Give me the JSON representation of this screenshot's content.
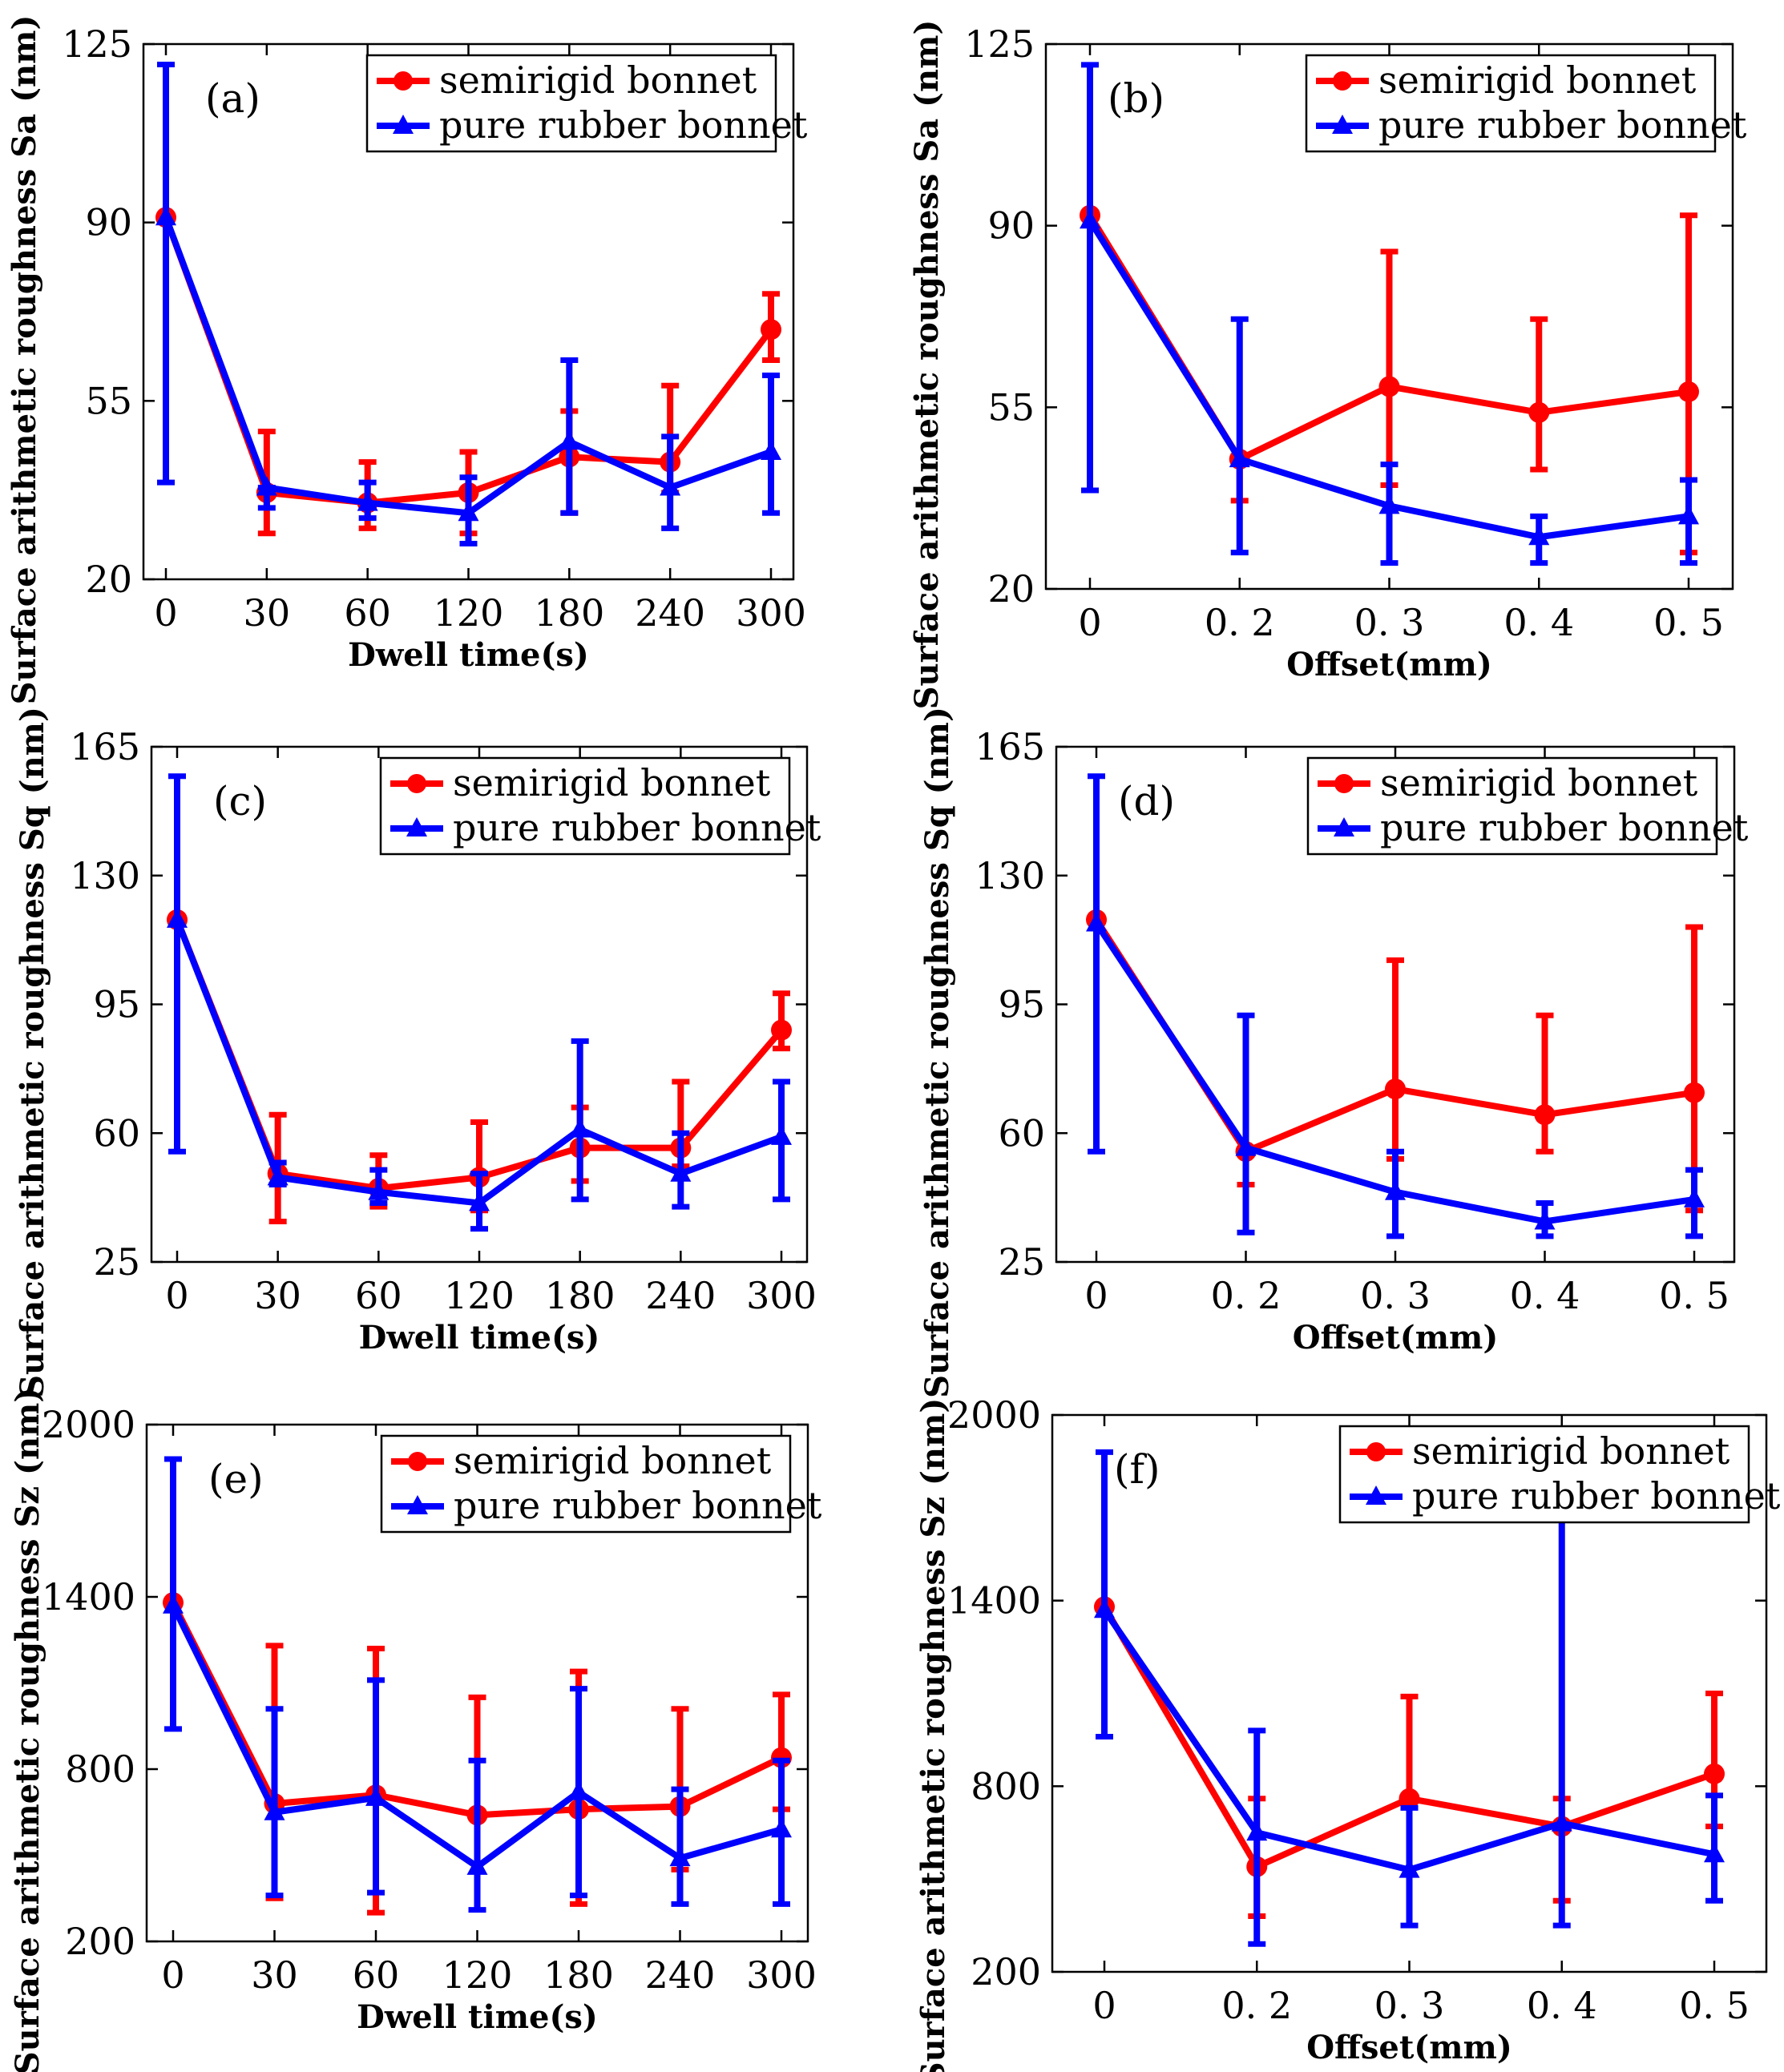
{
  "colors": {
    "semirigid": "#ff0000",
    "rubber": "#0000ff",
    "axis": "#000000"
  },
  "chart_data": [
    {
      "type": "line",
      "panel_label": "(a)",
      "xlabel": "Dwell time(s)",
      "ylabel": "Surface arithmetic roughness  Sa (nm)",
      "categories": [
        "0",
        "30",
        "60",
        "120",
        "180",
        "240",
        "300"
      ],
      "ylim": [
        20,
        125
      ],
      "yticks": [
        "20",
        "55",
        "90",
        "125"
      ],
      "legend": [
        "semirigid  bonnet",
        "pure rubber bonnet"
      ],
      "series": [
        {
          "name": "semirigid  bonnet",
          "values": [
            91,
            37,
            35,
            37,
            44,
            43,
            69
          ],
          "err_low": [
            91,
            29,
            30,
            29,
            33,
            37,
            63
          ],
          "err_high": [
            91,
            49,
            43,
            45,
            53,
            58,
            76
          ]
        },
        {
          "name": "pure rubber bonnet",
          "values": [
            91,
            38,
            35,
            33,
            47,
            38,
            45
          ],
          "err_low": [
            39,
            34,
            32,
            27,
            33,
            30,
            33
          ],
          "err_high": [
            121,
            38,
            39,
            40,
            63,
            48,
            60
          ]
        }
      ]
    },
    {
      "type": "line",
      "panel_label": "(b)",
      "xlabel": "Offset(mm)",
      "ylabel": "Surface arithmetic roughness  Sa (nm)",
      "categories": [
        "0",
        "0. 2",
        "0. 3",
        "0. 4",
        "0. 5"
      ],
      "ylim": [
        20,
        125
      ],
      "yticks": [
        "20",
        "55",
        "90",
        "125"
      ],
      "legend": [
        "semirigid  bonnet",
        "pure rubber bonnet"
      ],
      "series": [
        {
          "name": "semirigid  bonnet",
          "values": [
            92,
            45,
            59,
            54,
            58
          ],
          "err_low": [
            92,
            37,
            40,
            43,
            27
          ],
          "err_high": [
            92,
            45,
            85,
            72,
            92
          ]
        },
        {
          "name": "pure rubber bonnet",
          "values": [
            91,
            45,
            36,
            30,
            34
          ],
          "err_low": [
            39,
            27,
            25,
            25,
            25
          ],
          "err_high": [
            121,
            72,
            44,
            34,
            41
          ]
        }
      ]
    },
    {
      "type": "line",
      "panel_label": "(c)",
      "xlabel": "Dwell time(s)",
      "ylabel": "Surface arithmetic roughness  Sq (nm)",
      "categories": [
        "0",
        "30",
        "60",
        "120",
        "180",
        "240",
        "300"
      ],
      "ylim": [
        25,
        165
      ],
      "yticks": [
        "25",
        "60",
        "95",
        "130",
        "165"
      ],
      "legend": [
        "semirigid  bonnet",
        "pure rubber bonnet"
      ],
      "series": [
        {
          "name": "semirigid  bonnet",
          "values": [
            118,
            49,
            45,
            48,
            56,
            56,
            88
          ],
          "err_low": [
            118,
            36,
            40,
            39,
            47,
            51,
            83
          ],
          "err_high": [
            118,
            65,
            54,
            63,
            67,
            74,
            98
          ]
        },
        {
          "name": "pure rubber bonnet",
          "values": [
            118,
            48,
            44,
            41,
            61,
            49,
            59
          ],
          "err_low": [
            55,
            46,
            41,
            34,
            42,
            40,
            42
          ],
          "err_high": [
            157,
            52,
            50,
            49,
            85,
            60,
            74
          ]
        }
      ]
    },
    {
      "type": "line",
      "panel_label": "(d)",
      "xlabel": "Offset(mm)",
      "ylabel": "Surface arithmetic roughness  Sq (nm)",
      "categories": [
        "0",
        "0. 2",
        "0. 3",
        "0. 4",
        "0. 5"
      ],
      "ylim": [
        25,
        165
      ],
      "yticks": [
        "25",
        "60",
        "95",
        "130",
        "165"
      ],
      "legend": [
        "semirigid  bonnet",
        "pure rubber bonnet"
      ],
      "series": [
        {
          "name": "semirigid  bonnet",
          "values": [
            118,
            55,
            72,
            65,
            71
          ],
          "err_low": [
            118,
            46,
            53,
            55,
            39
          ],
          "err_high": [
            118,
            55,
            107,
            92,
            116
          ]
        },
        {
          "name": "pure rubber bonnet",
          "values": [
            117,
            56,
            44,
            36,
            42
          ],
          "err_low": [
            55,
            33,
            32,
            32,
            32
          ],
          "err_high": [
            157,
            92,
            55,
            41,
            50
          ]
        }
      ]
    },
    {
      "type": "line",
      "panel_label": "(e)",
      "xlabel": "Dwell time(s)",
      "ylabel": "Surface arithmetic roughness  Sz (nm)",
      "categories": [
        "0",
        "30",
        "60",
        "120",
        "180",
        "240",
        "300"
      ],
      "ylim": [
        200,
        2000
      ],
      "yticks": [
        "200",
        "800",
        "1400",
        "2000"
      ],
      "legend": [
        "semirigid  bonnet",
        "pure rubber bonnet"
      ],
      "series": [
        {
          "name": "semirigid  bonnet",
          "values": [
            1380,
            680,
            710,
            640,
            660,
            670,
            840
          ],
          "err_low": [
            1380,
            350,
            300,
            640,
            330,
            450,
            660
          ],
          "err_high": [
            1380,
            1230,
            1220,
            1050,
            1140,
            1010,
            1060
          ]
        },
        {
          "name": "pure rubber bonnet",
          "values": [
            1370,
            650,
            700,
            460,
            720,
            490,
            590
          ],
          "err_low": [
            940,
            360,
            370,
            310,
            360,
            330,
            330
          ],
          "err_high": [
            1880,
            1010,
            1110,
            830,
            1080,
            730,
            830
          ]
        }
      ]
    },
    {
      "type": "line",
      "panel_label": "(f)",
      "xlabel": "Offset(mm)",
      "ylabel": "Surface arithmetic roughness  Sz (nm)",
      "categories": [
        "0",
        "0. 2",
        "0. 3",
        "0. 4",
        "0. 5"
      ],
      "ylim": [
        200,
        2000
      ],
      "yticks": [
        "200",
        "800",
        "1400",
        "2000"
      ],
      "legend": [
        "semirigid  bonnet",
        "pure rubber bonnet"
      ],
      "series": [
        {
          "name": "semirigid  bonnet",
          "values": [
            1380,
            540,
            760,
            670,
            840
          ],
          "err_low": [
            1380,
            380,
            760,
            430,
            670
          ],
          "err_high": [
            1380,
            760,
            1090,
            760,
            1100
          ]
        },
        {
          "name": "pure rubber bonnet",
          "values": [
            1370,
            650,
            530,
            680,
            580
          ],
          "err_low": [
            960,
            290,
            350,
            350,
            430
          ],
          "err_high": [
            1880,
            980,
            730,
            1820,
            770
          ]
        }
      ]
    }
  ]
}
